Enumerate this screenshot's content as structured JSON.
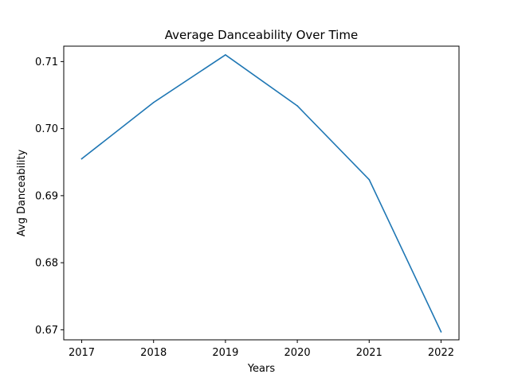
{
  "chart_data": {
    "type": "line",
    "title": "Average Danceability Over Time",
    "xlabel": "Years",
    "ylabel": "Avg Danceability",
    "x": [
      2017,
      2018,
      2019,
      2020,
      2021,
      2022
    ],
    "x_tick_labels": [
      "2017",
      "2018",
      "2019",
      "2020",
      "2021",
      "2022"
    ],
    "y_ticks": [
      0.67,
      0.68,
      0.69,
      0.7,
      0.71
    ],
    "y_tick_labels": [
      "0.67",
      "0.68",
      "0.69",
      "0.70",
      "0.71"
    ],
    "ylim": [
      0.6685,
      0.7123
    ],
    "xlim": [
      2016.75,
      2022.25
    ],
    "series": [
      {
        "values": [
          0.6955,
          0.7039,
          0.711,
          0.7034,
          0.6924,
          0.6697
        ],
        "color": "#1f77b4"
      }
    ],
    "grid": false,
    "legend": "none"
  }
}
